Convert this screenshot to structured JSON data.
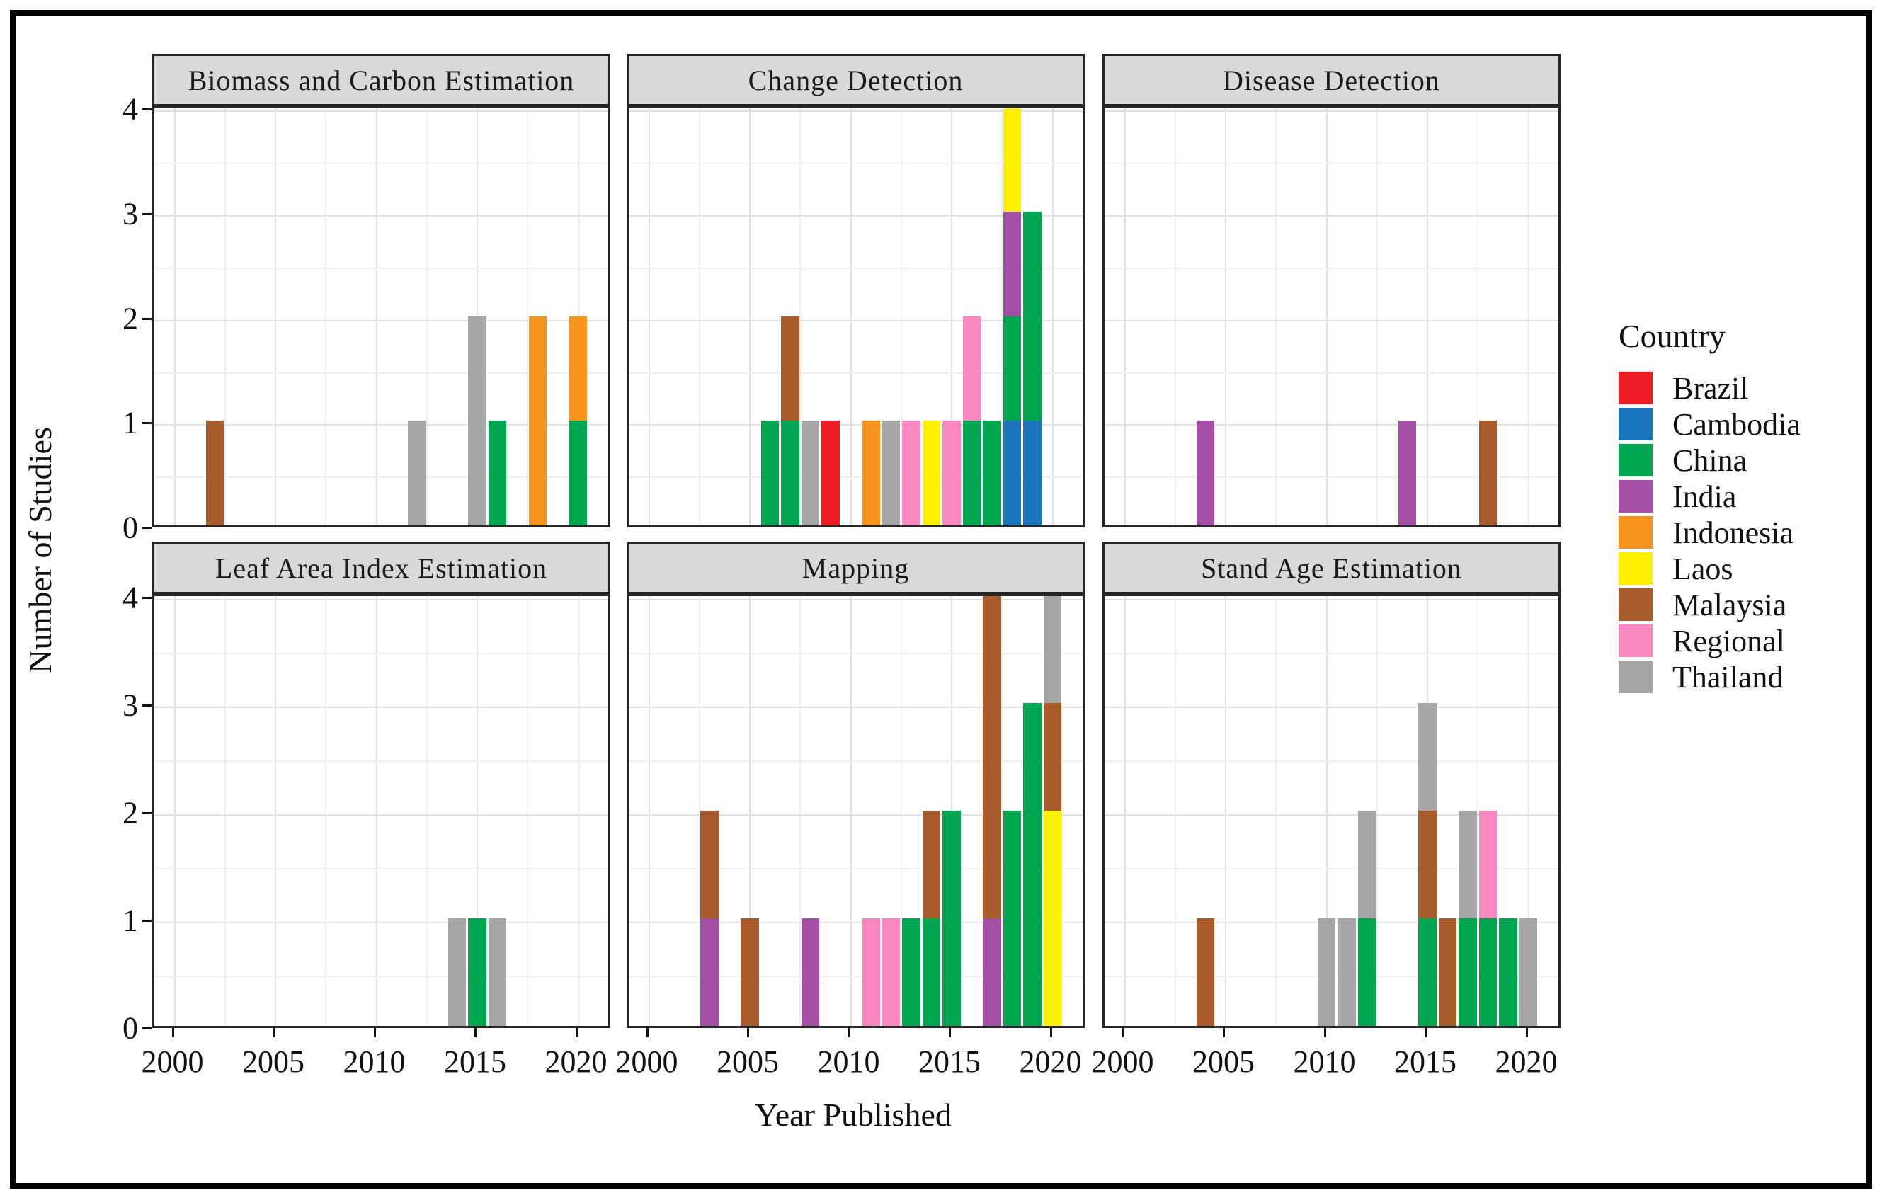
{
  "figure": {
    "x_axis_label": "Year Published",
    "y_axis_label": "Number of Studies"
  },
  "legend": {
    "title": "Country",
    "items": [
      {
        "label": "Brazil",
        "color": "#ee1c25"
      },
      {
        "label": "Cambodia",
        "color": "#1b75bc"
      },
      {
        "label": "China",
        "color": "#00a650"
      },
      {
        "label": "India",
        "color": "#a550a7"
      },
      {
        "label": "Indonesia",
        "color": "#f7941d"
      },
      {
        "label": "Laos",
        "color": "#fff200"
      },
      {
        "label": "Malaysia",
        "color": "#a85b2b"
      },
      {
        "label": "Regional",
        "color": "#f987c0"
      },
      {
        "label": "Thailand",
        "color": "#a6a6a6"
      }
    ]
  },
  "colors": {
    "strip_bg": "#d9d9d9",
    "panel_border": "#262626",
    "grid_major": "#e2e2e2",
    "grid_minor": "#f0f0f0"
  },
  "chart_data": {
    "type": "bar",
    "stacked": true,
    "stack_order": "alphabetical-bottom-to-top",
    "xlabel": "Year Published",
    "ylabel": "Number of Studies",
    "x_ticks": [
      2000,
      2005,
      2010,
      2015,
      2020
    ],
    "y_ticks": [
      4,
      3,
      2,
      1,
      0
    ],
    "x_domain": [
      1999.0,
      2021.7
    ],
    "y_domain": [
      0,
      4
    ],
    "bar_width_years": 0.9,
    "grid": {
      "x_step": 2.5,
      "y_step": 0.5,
      "x_major_every": 5,
      "y_major_every": 1
    },
    "legend_position": "right",
    "facets": [
      {
        "title": "Biomass and Carbon Estimation",
        "bars": [
          {
            "year": 2002,
            "segments": [
              {
                "country": "Malaysia",
                "value": 1
              }
            ]
          },
          {
            "year": 2012,
            "segments": [
              {
                "country": "Thailand",
                "value": 1
              }
            ]
          },
          {
            "year": 2015,
            "segments": [
              {
                "country": "Thailand",
                "value": 2
              }
            ]
          },
          {
            "year": 2016,
            "segments": [
              {
                "country": "China",
                "value": 1
              }
            ]
          },
          {
            "year": 2018,
            "segments": [
              {
                "country": "Indonesia",
                "value": 2
              }
            ]
          },
          {
            "year": 2020,
            "segments": [
              {
                "country": "China",
                "value": 1
              },
              {
                "country": "Indonesia",
                "value": 1
              }
            ]
          }
        ]
      },
      {
        "title": "Change Detection",
        "bars": [
          {
            "year": 2006,
            "segments": [
              {
                "country": "China",
                "value": 1
              }
            ]
          },
          {
            "year": 2007,
            "segments": [
              {
                "country": "China",
                "value": 1
              },
              {
                "country": "Malaysia",
                "value": 1
              }
            ]
          },
          {
            "year": 2008,
            "segments": [
              {
                "country": "Thailand",
                "value": 1
              }
            ]
          },
          {
            "year": 2009,
            "segments": [
              {
                "country": "Brazil",
                "value": 1
              }
            ]
          },
          {
            "year": 2011,
            "segments": [
              {
                "country": "Indonesia",
                "value": 1
              }
            ]
          },
          {
            "year": 2012,
            "segments": [
              {
                "country": "Thailand",
                "value": 1
              }
            ]
          },
          {
            "year": 2013,
            "segments": [
              {
                "country": "Regional",
                "value": 1
              }
            ]
          },
          {
            "year": 2014,
            "segments": [
              {
                "country": "Laos",
                "value": 1
              }
            ]
          },
          {
            "year": 2015,
            "segments": [
              {
                "country": "Regional",
                "value": 1
              }
            ]
          },
          {
            "year": 2016,
            "segments": [
              {
                "country": "China",
                "value": 1
              },
              {
                "country": "Regional",
                "value": 1
              }
            ]
          },
          {
            "year": 2017,
            "segments": [
              {
                "country": "China",
                "value": 1
              }
            ]
          },
          {
            "year": 2018,
            "segments": [
              {
                "country": "Cambodia",
                "value": 1
              },
              {
                "country": "China",
                "value": 1
              },
              {
                "country": "India",
                "value": 1
              },
              {
                "country": "Laos",
                "value": 1
              }
            ]
          },
          {
            "year": 2019,
            "segments": [
              {
                "country": "Cambodia",
                "value": 1
              },
              {
                "country": "China",
                "value": 2
              }
            ]
          }
        ]
      },
      {
        "title": "Disease Detection",
        "bars": [
          {
            "year": 2004,
            "segments": [
              {
                "country": "India",
                "value": 1
              }
            ]
          },
          {
            "year": 2014,
            "segments": [
              {
                "country": "India",
                "value": 1
              }
            ]
          },
          {
            "year": 2018,
            "segments": [
              {
                "country": "Malaysia",
                "value": 1
              }
            ]
          }
        ]
      },
      {
        "title": "Leaf Area Index Estimation",
        "bars": [
          {
            "year": 2014,
            "segments": [
              {
                "country": "Thailand",
                "value": 1
              }
            ]
          },
          {
            "year": 2015,
            "segments": [
              {
                "country": "China",
                "value": 1
              }
            ]
          },
          {
            "year": 2016,
            "segments": [
              {
                "country": "Thailand",
                "value": 1
              }
            ]
          }
        ]
      },
      {
        "title": "Mapping",
        "bars": [
          {
            "year": 2003,
            "segments": [
              {
                "country": "India",
                "value": 1
              },
              {
                "country": "Malaysia",
                "value": 1
              }
            ]
          },
          {
            "year": 2005,
            "segments": [
              {
                "country": "Malaysia",
                "value": 1
              }
            ]
          },
          {
            "year": 2008,
            "segments": [
              {
                "country": "India",
                "value": 1
              }
            ]
          },
          {
            "year": 2011,
            "segments": [
              {
                "country": "Regional",
                "value": 1
              }
            ]
          },
          {
            "year": 2012,
            "segments": [
              {
                "country": "Regional",
                "value": 1
              }
            ]
          },
          {
            "year": 2013,
            "segments": [
              {
                "country": "China",
                "value": 1
              }
            ]
          },
          {
            "year": 2014,
            "segments": [
              {
                "country": "China",
                "value": 1
              },
              {
                "country": "Malaysia",
                "value": 1
              }
            ]
          },
          {
            "year": 2015,
            "segments": [
              {
                "country": "China",
                "value": 2
              }
            ]
          },
          {
            "year": 2017,
            "segments": [
              {
                "country": "India",
                "value": 1
              },
              {
                "country": "Malaysia",
                "value": 3
              }
            ]
          },
          {
            "year": 2018,
            "segments": [
              {
                "country": "China",
                "value": 2
              }
            ]
          },
          {
            "year": 2019,
            "segments": [
              {
                "country": "China",
                "value": 3
              }
            ]
          },
          {
            "year": 2020,
            "segments": [
              {
                "country": "Laos",
                "value": 2
              },
              {
                "country": "Malaysia",
                "value": 1
              },
              {
                "country": "Thailand",
                "value": 1
              }
            ]
          }
        ]
      },
      {
        "title": "Stand Age Estimation",
        "bars": [
          {
            "year": 2004,
            "segments": [
              {
                "country": "Malaysia",
                "value": 1
              }
            ]
          },
          {
            "year": 2010,
            "segments": [
              {
                "country": "Thailand",
                "value": 1
              }
            ]
          },
          {
            "year": 2011,
            "segments": [
              {
                "country": "Thailand",
                "value": 1
              }
            ]
          },
          {
            "year": 2012,
            "segments": [
              {
                "country": "China",
                "value": 1
              },
              {
                "country": "Thailand",
                "value": 1
              }
            ]
          },
          {
            "year": 2015,
            "segments": [
              {
                "country": "China",
                "value": 1
              },
              {
                "country": "Malaysia",
                "value": 1
              },
              {
                "country": "Thailand",
                "value": 1
              }
            ]
          },
          {
            "year": 2016,
            "segments": [
              {
                "country": "Malaysia",
                "value": 1
              }
            ]
          },
          {
            "year": 2017,
            "segments": [
              {
                "country": "China",
                "value": 1
              },
              {
                "country": "Thailand",
                "value": 1
              }
            ]
          },
          {
            "year": 2018,
            "segments": [
              {
                "country": "China",
                "value": 1
              },
              {
                "country": "Regional",
                "value": 1
              }
            ]
          },
          {
            "year": 2019,
            "segments": [
              {
                "country": "China",
                "value": 1
              }
            ]
          },
          {
            "year": 2020,
            "segments": [
              {
                "country": "Thailand",
                "value": 1
              }
            ]
          }
        ]
      }
    ]
  }
}
